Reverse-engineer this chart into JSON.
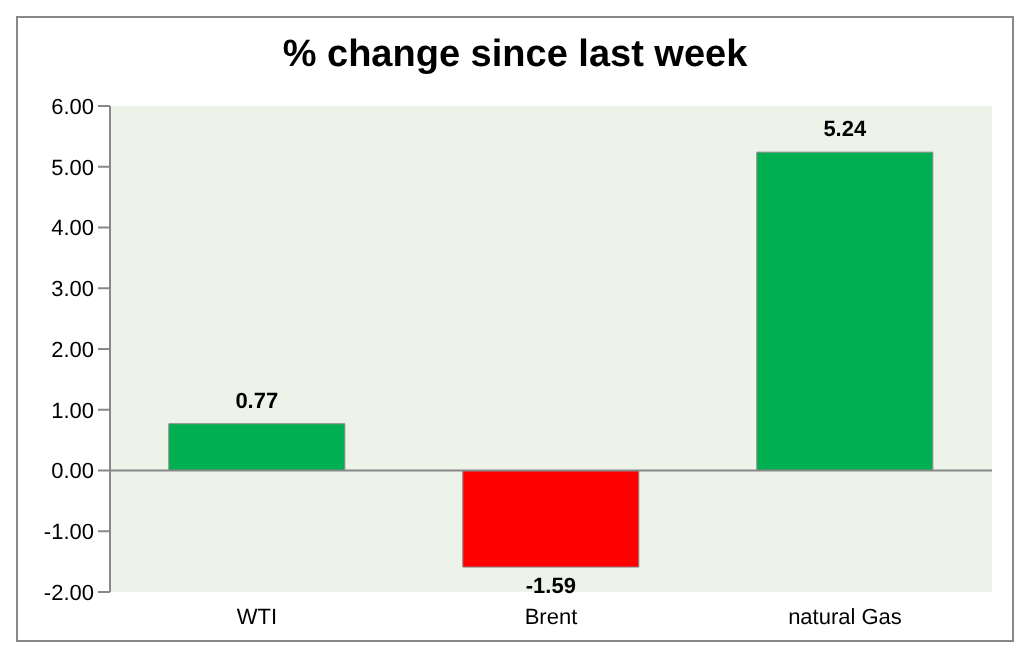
{
  "chart_data": {
    "type": "bar",
    "title": "% change since last week",
    "categories": [
      "WTI",
      "Brent",
      "natural Gas"
    ],
    "values": [
      0.77,
      -1.59,
      5.24
    ],
    "colors": [
      "#00b050",
      "#ff0000",
      "#00b050"
    ],
    "ylim": [
      -2,
      6
    ],
    "yticks": [
      {
        "value": -2,
        "label": "-2.00"
      },
      {
        "value": -1,
        "label": "-1.00"
      },
      {
        "value": 0,
        "label": "0.00"
      },
      {
        "value": 1,
        "label": "1.00"
      },
      {
        "value": 2,
        "label": "2.00"
      },
      {
        "value": 3,
        "label": "3.00"
      },
      {
        "value": 4,
        "label": "4.00"
      },
      {
        "value": 5,
        "label": "5.00"
      },
      {
        "value": 6,
        "label": "6.00"
      }
    ],
    "data_labels": true
  }
}
